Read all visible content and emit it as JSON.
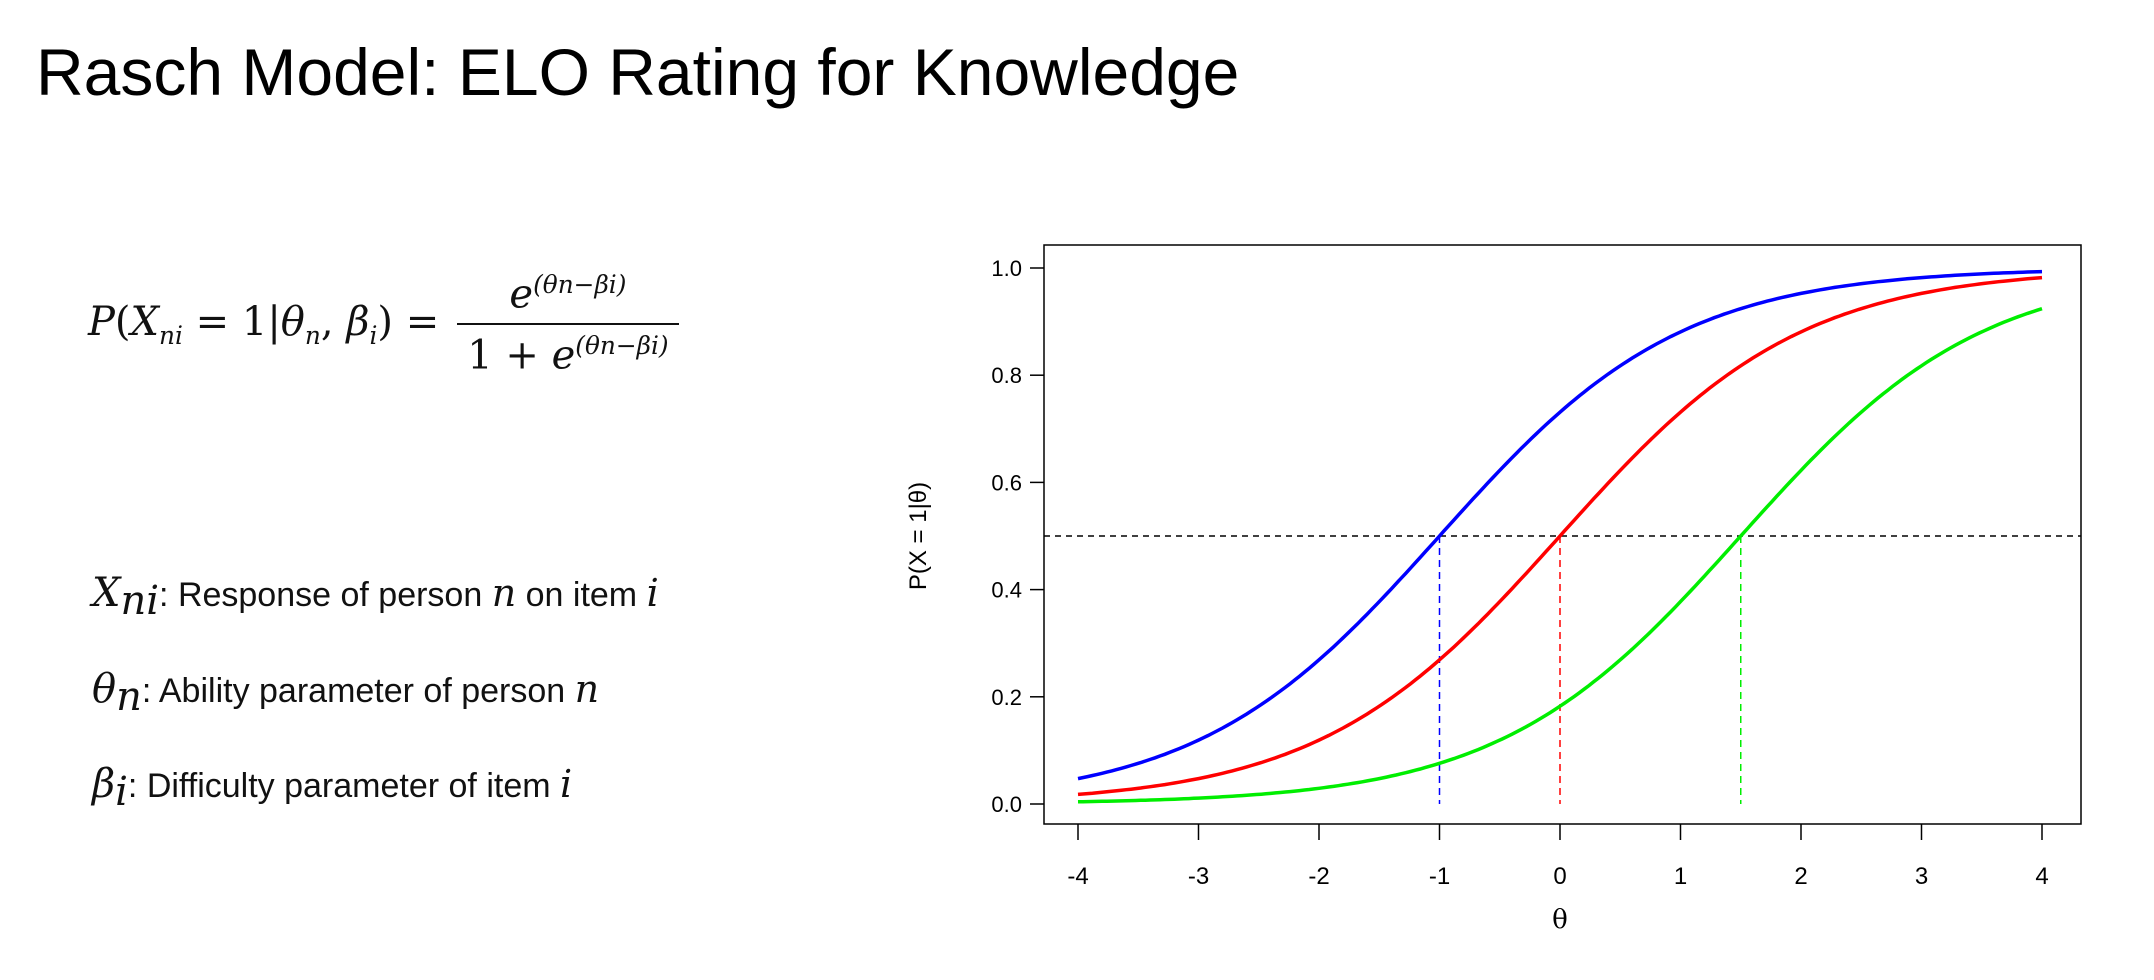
{
  "title": "Rasch Model: ELO Rating for Knowledge",
  "formula": {
    "lhs": "P(X",
    "lhs_sub": "ni",
    "lhs_rest": " = 1|θ",
    "lhs_sub2": "n",
    "lhs_comma": ", β",
    "lhs_sub3": "i",
    "lhs_end": ") =",
    "numerator_base": "e",
    "exponent": "(θn−βi)",
    "denominator_prefix": "1 + e"
  },
  "definitions": [
    {
      "symbol": "X",
      "sub": "ni",
      "text": ": Response of person ",
      "var1": "n",
      "text2": " on item ",
      "var2": "i"
    },
    {
      "symbol": "θ",
      "sub": "n",
      "text": ": Ability parameter of person ",
      "var1": "n",
      "text2": "",
      "var2": ""
    },
    {
      "symbol": "β",
      "sub": "i",
      "text": ": Difficulty parameter of item ",
      "var1": "i",
      "text2": "",
      "var2": ""
    }
  ],
  "chart_data": {
    "type": "line",
    "xlabel": "θ",
    "ylabel": "P(X = 1|θ)",
    "xlim": [
      -4,
      4
    ],
    "ylim": [
      0,
      1
    ],
    "x_ticks": [
      "-4",
      "-3",
      "-2",
      "-1",
      "0",
      "1",
      "2",
      "3",
      "4"
    ],
    "y_ticks": [
      "0.0",
      "0.2",
      "0.4",
      "0.6",
      "0.8",
      "1.0"
    ],
    "grid": false,
    "function": "exp(θ-β)/(1+exp(θ-β))",
    "series": [
      {
        "beta": -1,
        "color": "#0000ff"
      },
      {
        "beta": 0,
        "color": "#ff0000"
      },
      {
        "beta": 1.5,
        "color": "#00ee00"
      }
    ],
    "reference_line": {
      "y": 0.5,
      "color": "#000000",
      "style": "dashed"
    }
  }
}
